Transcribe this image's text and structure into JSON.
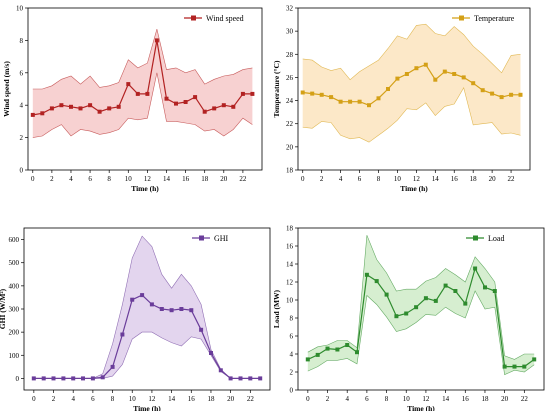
{
  "chart_data": [
    {
      "type": "line",
      "x": [
        0,
        1,
        2,
        3,
        4,
        5,
        6,
        7,
        8,
        9,
        10,
        11,
        12,
        13,
        14,
        15,
        16,
        17,
        18,
        19,
        20,
        21,
        22,
        23
      ],
      "series": [
        {
          "name": "Wind speed",
          "values": [
            3.4,
            3.5,
            3.8,
            4.0,
            3.9,
            3.8,
            4.0,
            3.6,
            3.8,
            3.9,
            5.3,
            4.7,
            4.7,
            8.0,
            4.4,
            4.1,
            4.2,
            4.5,
            3.6,
            3.8,
            4.0,
            3.9,
            4.7,
            4.7
          ],
          "upper": [
            5.0,
            5.0,
            5.2,
            5.6,
            5.8,
            5.3,
            5.8,
            5.1,
            5.2,
            5.4,
            6.8,
            6.3,
            6.6,
            8.7,
            6.2,
            6.3,
            6.0,
            6.2,
            5.3,
            5.6,
            5.8,
            5.9,
            6.2,
            6.3
          ],
          "lower": [
            2.0,
            2.1,
            2.5,
            2.8,
            2.1,
            2.5,
            2.4,
            2.2,
            2.3,
            2.5,
            3.2,
            3.1,
            3.2,
            6.0,
            3.0,
            3.0,
            2.9,
            2.8,
            2.4,
            2.5,
            2.1,
            2.5,
            3.2,
            2.8
          ],
          "color": "#b22222",
          "band_color": "#f4c2c2",
          "marker": "square"
        }
      ],
      "title": "",
      "xlabel": "Time (h)",
      "ylabel": "Wind speed (m/s)",
      "xlim": [
        -0.5,
        24
      ],
      "ylim": [
        0,
        10
      ],
      "xticks": [
        0,
        2,
        4,
        6,
        8,
        10,
        12,
        14,
        16,
        18,
        20,
        22
      ],
      "yticks": [
        0,
        2,
        4,
        6,
        8,
        10
      ],
      "grid": false,
      "legend_placement": "top-right"
    },
    {
      "type": "line",
      "x": [
        0,
        1,
        2,
        3,
        4,
        5,
        6,
        7,
        8,
        9,
        10,
        11,
        12,
        13,
        14,
        15,
        16,
        17,
        18,
        19,
        20,
        21,
        22,
        23
      ],
      "series": [
        {
          "name": "Temperature",
          "values": [
            24.7,
            24.6,
            24.5,
            24.3,
            23.9,
            23.9,
            23.9,
            23.6,
            24.2,
            25.0,
            25.9,
            26.3,
            26.8,
            27.1,
            25.8,
            26.5,
            26.3,
            26.0,
            25.5,
            24.9,
            24.6,
            24.3,
            24.5,
            24.5
          ],
          "upper": [
            27.6,
            27.5,
            26.9,
            26.6,
            26.8,
            25.8,
            26.5,
            27.0,
            27.5,
            28.5,
            29.6,
            29.3,
            30.5,
            30.6,
            29.8,
            29.6,
            30.4,
            29.7,
            28.7,
            28.0,
            27.2,
            26.4,
            27.9,
            28.0
          ],
          "lower": [
            21.7,
            21.6,
            22.2,
            22.1,
            21.0,
            20.7,
            20.8,
            20.4,
            21.0,
            21.6,
            22.3,
            23.3,
            23.2,
            23.8,
            22.7,
            23.5,
            23.7,
            25.1,
            21.9,
            22.0,
            22.1,
            21.1,
            21.2,
            21.0
          ],
          "color": "#d4a017",
          "band_color": "#fbe0b5",
          "marker": "square"
        }
      ],
      "title": "",
      "xlabel": "Time (h)",
      "ylabel": "Temperature (°C)",
      "xlim": [
        -0.5,
        24
      ],
      "ylim": [
        18,
        32
      ],
      "xticks": [
        0,
        2,
        4,
        6,
        8,
        10,
        12,
        14,
        16,
        18,
        20,
        22
      ],
      "yticks": [
        18,
        20,
        22,
        24,
        26,
        28,
        30,
        32
      ],
      "grid": false,
      "legend_placement": "top-right"
    },
    {
      "type": "line",
      "x": [
        0,
        1,
        2,
        3,
        4,
        5,
        6,
        7,
        8,
        9,
        10,
        11,
        12,
        13,
        14,
        15,
        16,
        17,
        18,
        19,
        20,
        21,
        22,
        23
      ],
      "series": [
        {
          "name": "GHI",
          "values": [
            0,
            0,
            0,
            0,
            0,
            0,
            0,
            5,
            50,
            190,
            340,
            360,
            320,
            300,
            295,
            300,
            295,
            210,
            110,
            35,
            0,
            0,
            0,
            0
          ],
          "upper": [
            0,
            0,
            0,
            0,
            0,
            0,
            0,
            20,
            150,
            320,
            520,
            615,
            570,
            450,
            390,
            450,
            400,
            320,
            125,
            40,
            0,
            0,
            0,
            0
          ],
          "lower": [
            0,
            0,
            0,
            0,
            0,
            0,
            0,
            0,
            10,
            60,
            170,
            200,
            200,
            175,
            155,
            140,
            180,
            170,
            100,
            30,
            0,
            0,
            0,
            0
          ],
          "color": "#6a3d9a",
          "band_color": "#d9c7e8",
          "marker": "square"
        }
      ],
      "title": "",
      "xlabel": "Time (h)",
      "ylabel": "GHI (W/M²)",
      "xlim": [
        -1,
        24
      ],
      "ylim": [
        -50,
        650
      ],
      "xticks": [
        0,
        2,
        4,
        6,
        8,
        10,
        12,
        14,
        16,
        18,
        20,
        22
      ],
      "yticks": [
        0,
        100,
        200,
        300,
        400,
        500,
        600
      ],
      "grid": false,
      "legend_placement": "top-right"
    },
    {
      "type": "line",
      "x": [
        0,
        1,
        2,
        3,
        4,
        5,
        6,
        7,
        8,
        9,
        10,
        11,
        12,
        13,
        14,
        15,
        16,
        17,
        18,
        19,
        20,
        21,
        22,
        23
      ],
      "series": [
        {
          "name": "Load",
          "values": [
            3.4,
            3.9,
            4.6,
            4.5,
            5.0,
            4.2,
            12.8,
            12.1,
            10.6,
            8.2,
            8.5,
            9.2,
            10.2,
            9.9,
            11.6,
            11.0,
            9.6,
            13.5,
            11.4,
            11.0,
            2.6,
            2.6,
            2.6,
            3.4
          ],
          "upper": [
            4.2,
            4.8,
            5.0,
            5.5,
            5.5,
            4.7,
            17.2,
            14.5,
            13.0,
            11.0,
            11.2,
            11.2,
            12.1,
            12.5,
            13.5,
            12.8,
            12.0,
            14.8,
            13.5,
            12.0,
            3.8,
            3.4,
            4.0,
            4.0
          ],
          "lower": [
            2.1,
            2.6,
            3.3,
            3.3,
            3.5,
            2.9,
            10.5,
            9.5,
            8.1,
            6.5,
            6.8,
            7.5,
            8.4,
            8.3,
            9.2,
            8.5,
            8.0,
            11.0,
            9.0,
            9.2,
            1.7,
            2.2,
            2.0,
            2.8
          ],
          "color": "#2e8b2e",
          "band_color": "#c8e8c0",
          "marker": "square"
        }
      ],
      "title": "",
      "xlabel": "Time (h)",
      "ylabel": "Load (MW)",
      "xlim": [
        -1,
        24
      ],
      "ylim": [
        0,
        18
      ],
      "xticks": [
        0,
        2,
        4,
        6,
        8,
        10,
        12,
        14,
        16,
        18,
        20,
        22
      ],
      "yticks": [
        0,
        2,
        4,
        6,
        8,
        10,
        12,
        14,
        16,
        18
      ],
      "grid": false,
      "legend_placement": "top-right"
    }
  ]
}
